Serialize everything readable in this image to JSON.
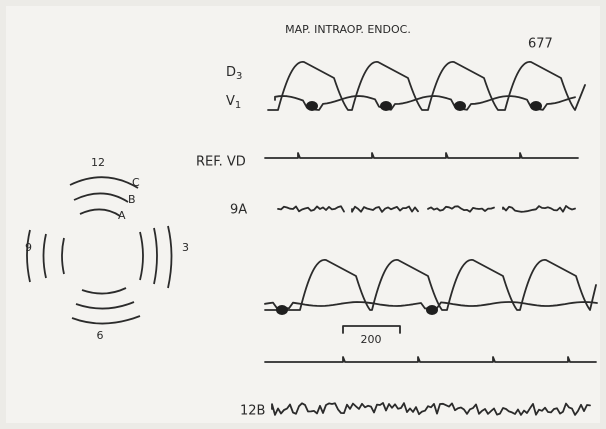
{
  "figure": {
    "title": "MAP. INTRAOP. ENDOC.",
    "record_number": "677",
    "leads": {
      "d3": {
        "letter": "D",
        "subscript": "3"
      },
      "v1": {
        "letter": "V",
        "subscript": "1"
      },
      "ref": "REF. VD",
      "site_9a": "9A",
      "site_12b": "12B"
    },
    "scale_label": "200",
    "clock": {
      "top": "12",
      "right": "3",
      "bottom": "6",
      "left": "9",
      "rings": [
        "C",
        "B",
        "A"
      ]
    }
  }
}
